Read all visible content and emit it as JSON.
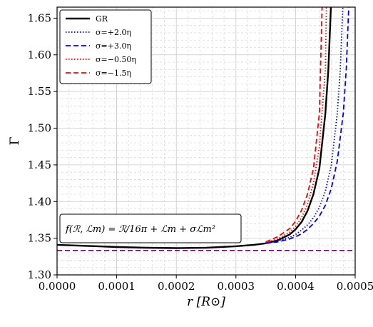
{
  "chart_data": {
    "type": "line",
    "xlabel": "r [R⊙]",
    "ylabel": "Γ",
    "xlim": [
      0.0,
      0.0005
    ],
    "ylim": [
      1.3,
      1.665
    ],
    "xticks": [
      0.0,
      0.0001,
      0.0002,
      0.0003,
      0.0004,
      0.0005
    ],
    "xtick_labels": [
      "0.0000",
      "0.0001",
      "0.0002",
      "0.0003",
      "0.0004",
      "0.0005"
    ],
    "yticks": [
      1.3,
      1.35,
      1.4,
      1.45,
      1.5,
      1.55,
      1.6,
      1.65
    ],
    "ytick_labels": [
      "1.30",
      "1.35",
      "1.40",
      "1.45",
      "1.50",
      "1.55",
      "1.60",
      "1.65"
    ],
    "grid": true,
    "legend_position": "top-left",
    "reference_line": {
      "y": 1.3333,
      "color": "#800080",
      "style": "dashed"
    },
    "annotation": "f(ℛ, ℒm) = ℛ/16π + ℒm + σℒm²",
    "series": [
      {
        "name": "GR",
        "color": "#000000",
        "style": "solid",
        "x": [
          0.0,
          5e-05,
          0.0001,
          0.00015,
          0.0002,
          0.00025,
          0.0003,
          0.00033,
          0.00035,
          0.00037,
          0.00039,
          0.0004,
          0.00041,
          0.00042,
          0.00043,
          0.00044,
          0.00045,
          0.000455,
          0.00046
        ],
        "values": [
          1.341,
          1.3395,
          1.338,
          1.337,
          1.3365,
          1.337,
          1.339,
          1.341,
          1.343,
          1.347,
          1.355,
          1.362,
          1.372,
          1.387,
          1.41,
          1.445,
          1.52,
          1.58,
          1.68
        ]
      },
      {
        "name": "σ=+2.0η",
        "color": "#0000ff",
        "style": "dotted",
        "x": [
          0.00035,
          0.00037,
          0.00039,
          0.0004,
          0.00041,
          0.00042,
          0.00043,
          0.00044,
          0.00045,
          0.00046,
          0.00047,
          0.000475,
          0.00048
        ],
        "values": [
          1.343,
          1.346,
          1.351,
          1.355,
          1.361,
          1.368,
          1.378,
          1.392,
          1.414,
          1.45,
          1.52,
          1.58,
          1.68
        ]
      },
      {
        "name": "σ=+3.0η",
        "color": "#0000ff",
        "style": "dashed",
        "x": [
          0.00035,
          0.00037,
          0.00039,
          0.0004,
          0.00041,
          0.00042,
          0.00043,
          0.00044,
          0.00045,
          0.00046,
          0.00047,
          0.00048,
          0.000485,
          0.00049
        ],
        "values": [
          1.343,
          1.345,
          1.349,
          1.352,
          1.356,
          1.362,
          1.37,
          1.38,
          1.395,
          1.418,
          1.455,
          1.52,
          1.58,
          1.68
        ]
      },
      {
        "name": "σ=−0.50η",
        "color": "#ff0000",
        "style": "dotted",
        "x": [
          0.00035,
          0.00037,
          0.00039,
          0.0004,
          0.00041,
          0.00042,
          0.00043,
          0.00044,
          0.00045,
          0.000452
        ],
        "values": [
          1.344,
          1.349,
          1.358,
          1.366,
          1.378,
          1.396,
          1.425,
          1.475,
          1.58,
          1.68
        ]
      },
      {
        "name": "σ=−1.5η",
        "color": "#ff0000",
        "style": "dashed",
        "x": [
          0.00035,
          0.00037,
          0.00039,
          0.0004,
          0.00041,
          0.00042,
          0.00043,
          0.00044,
          0.000445
        ],
        "values": [
          1.345,
          1.352,
          1.363,
          1.373,
          1.388,
          1.41,
          1.445,
          1.52,
          1.68
        ]
      }
    ]
  }
}
